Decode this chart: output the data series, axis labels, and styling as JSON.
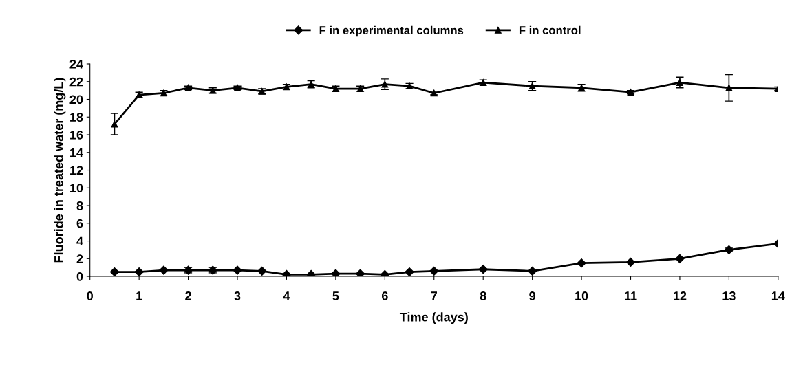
{
  "chart_data": {
    "type": "line",
    "xlabel": "Time (days)",
    "ylabel": "Fluoride in treated water (mg/L)",
    "x": [
      0.5,
      1,
      1.5,
      2,
      2.5,
      3,
      3.5,
      4,
      4.5,
      5,
      5.5,
      6,
      6.5,
      7,
      8,
      9,
      10,
      11,
      12,
      13,
      14
    ],
    "series": [
      {
        "name": "F in experimental columns",
        "color": "#000000",
        "marker": "diamond",
        "values": [
          0.5,
          0.5,
          0.7,
          0.7,
          0.7,
          0.7,
          0.6,
          0.2,
          0.2,
          0.3,
          0.3,
          0.2,
          0.5,
          0.6,
          0.8,
          0.6,
          1.5,
          1.6,
          2.0,
          3.0,
          3.7
        ],
        "errors": [
          null,
          null,
          null,
          0.3,
          0.3,
          null,
          null,
          null,
          null,
          null,
          null,
          null,
          null,
          null,
          null,
          null,
          null,
          null,
          null,
          0.2,
          null
        ]
      },
      {
        "name": "F in control",
        "color": "#000000",
        "marker": "triangle",
        "values": [
          17.2,
          20.5,
          20.7,
          21.3,
          21.0,
          21.3,
          20.9,
          21.4,
          21.7,
          21.2,
          21.2,
          21.7,
          21.5,
          20.7,
          21.9,
          21.5,
          21.3,
          20.8,
          21.9,
          21.3,
          21.2
        ],
        "errors": [
          1.2,
          0.3,
          0.3,
          0.2,
          0.3,
          0.2,
          0.3,
          0.3,
          0.4,
          0.3,
          0.3,
          0.6,
          0.3,
          0.2,
          0.3,
          0.5,
          0.4,
          0.2,
          0.6,
          1.5,
          0.2
        ]
      }
    ],
    "xlim": [
      0,
      14
    ],
    "xticks": [
      0,
      1,
      2,
      3,
      4,
      5,
      6,
      7,
      8,
      9,
      10,
      11,
      12,
      13,
      14
    ],
    "ylim": [
      0,
      24
    ],
    "yticks": [
      0,
      2,
      4,
      6,
      8,
      10,
      12,
      14,
      16,
      18,
      20,
      22,
      24
    ],
    "grid": false,
    "legend": "top",
    "line_style": "solid"
  }
}
